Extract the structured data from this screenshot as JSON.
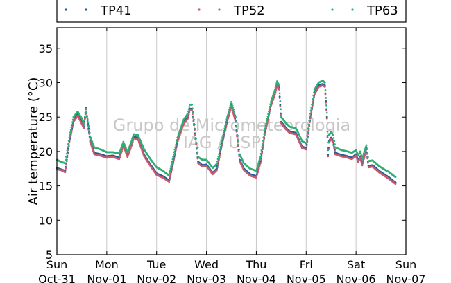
{
  "chart_data": {
    "type": "scatter",
    "ylabel": "Air temperature (°C)",
    "ylim": [
      5,
      38
    ],
    "yticks": [
      5,
      10,
      15,
      20,
      25,
      30,
      35
    ],
    "xlim_hours": [
      0,
      168
    ],
    "x_tick_labels": [
      {
        "day": "Sun",
        "date": "Oct-31"
      },
      {
        "day": "Mon",
        "date": "Nov-01"
      },
      {
        "day": "Tue",
        "date": "Nov-02"
      },
      {
        "day": "Wed",
        "date": "Nov-03"
      },
      {
        "day": "Thu",
        "date": "Nov-04"
      },
      {
        "day": "Fri",
        "date": "Nov-05"
      },
      {
        "day": "Sat",
        "date": "Nov-06"
      },
      {
        "day": "Sun",
        "date": "Nov-07"
      }
    ],
    "grid": "vertical",
    "legend_position": "top",
    "watermark": [
      "Grupo de Micrometeorologia",
      "IAG / USP"
    ],
    "series": [
      {
        "name": "TP41",
        "color": "#1f5fa0",
        "points": [
          [
            0,
            17.6
          ],
          [
            2,
            17.4
          ],
          [
            4,
            17.2
          ],
          [
            6,
            21.5
          ],
          [
            8,
            24.5
          ],
          [
            10,
            25.4
          ],
          [
            12,
            24.3
          ],
          [
            13,
            23.6
          ],
          [
            14,
            26.3
          ],
          [
            16,
            21.6
          ],
          [
            18,
            19.8
          ],
          [
            21,
            19.6
          ],
          [
            24,
            19.3
          ],
          [
            27,
            19.4
          ],
          [
            30,
            19.1
          ],
          [
            32,
            21.0
          ],
          [
            34,
            19.4
          ],
          [
            36,
            21.1
          ],
          [
            37,
            22.1
          ],
          [
            39,
            22.0
          ],
          [
            42,
            19.5
          ],
          [
            45,
            18.1
          ],
          [
            48,
            16.8
          ],
          [
            51,
            16.4
          ],
          [
            54,
            15.8
          ],
          [
            56,
            18.5
          ],
          [
            58,
            21.5
          ],
          [
            61,
            24.2
          ],
          [
            63,
            25.0
          ],
          [
            64,
            26.2
          ],
          [
            65,
            26.2
          ],
          [
            66,
            24.0
          ],
          [
            68,
            18.5
          ],
          [
            70,
            18.0
          ],
          [
            72,
            18.1
          ],
          [
            75,
            16.9
          ],
          [
            77,
            17.5
          ],
          [
            79,
            20.5
          ],
          [
            82,
            24.5
          ],
          [
            84,
            26.8
          ],
          [
            86,
            24.5
          ],
          [
            88,
            18.8
          ],
          [
            90,
            17.5
          ],
          [
            93,
            16.7
          ],
          [
            96,
            16.4
          ],
          [
            98,
            18.5
          ],
          [
            100,
            22.5
          ],
          [
            103,
            26.8
          ],
          [
            105,
            28.5
          ],
          [
            106,
            29.8
          ],
          [
            107,
            29.2
          ],
          [
            108,
            24.3
          ],
          [
            110,
            23.5
          ],
          [
            112,
            22.9
          ],
          [
            115,
            22.7
          ],
          [
            117,
            21.4
          ],
          [
            118,
            20.7
          ],
          [
            120,
            20.5
          ],
          [
            122,
            25.0
          ],
          [
            124,
            28.5
          ],
          [
            126,
            29.6
          ],
          [
            128,
            29.8
          ],
          [
            129,
            29.6
          ],
          [
            130,
            25.0
          ],
          [
            130.5,
            19.5
          ],
          [
            131,
            21.5
          ],
          [
            132,
            22.0
          ],
          [
            133,
            21.5
          ],
          [
            134,
            19.8
          ],
          [
            137,
            19.5
          ],
          [
            140,
            19.3
          ],
          [
            142,
            19.1
          ],
          [
            144,
            19.6
          ],
          [
            145,
            18.7
          ],
          [
            146,
            19.3
          ],
          [
            147,
            18.2
          ],
          [
            148,
            19.4
          ],
          [
            149,
            20.5
          ],
          [
            150,
            17.9
          ],
          [
            152,
            18.0
          ],
          [
            155,
            17.2
          ],
          [
            157,
            16.8
          ],
          [
            160,
            16.2
          ],
          [
            162,
            15.7
          ],
          [
            163,
            15.5
          ]
        ]
      },
      {
        "name": "TP52",
        "color": "#c85a6e",
        "points": [
          [
            0,
            17.4
          ],
          [
            2,
            17.3
          ],
          [
            4,
            17.0
          ],
          [
            6,
            21.3
          ],
          [
            8,
            24.3
          ],
          [
            10,
            25.2
          ],
          [
            12,
            24.0
          ],
          [
            13,
            23.4
          ],
          [
            14,
            26.1
          ],
          [
            16,
            21.4
          ],
          [
            18,
            19.6
          ],
          [
            21,
            19.4
          ],
          [
            24,
            19.1
          ],
          [
            27,
            19.2
          ],
          [
            30,
            18.9
          ],
          [
            32,
            20.8
          ],
          [
            34,
            19.2
          ],
          [
            36,
            20.9
          ],
          [
            37,
            21.9
          ],
          [
            39,
            21.8
          ],
          [
            42,
            19.3
          ],
          [
            45,
            17.9
          ],
          [
            48,
            16.6
          ],
          [
            51,
            16.2
          ],
          [
            54,
            15.6
          ],
          [
            56,
            18.3
          ],
          [
            58,
            21.3
          ],
          [
            61,
            24.0
          ],
          [
            63,
            24.8
          ],
          [
            64,
            26.0
          ],
          [
            65,
            26.0
          ],
          [
            66,
            23.8
          ],
          [
            68,
            18.3
          ],
          [
            70,
            17.8
          ],
          [
            72,
            17.9
          ],
          [
            75,
            16.7
          ],
          [
            77,
            17.3
          ],
          [
            79,
            20.3
          ],
          [
            82,
            24.3
          ],
          [
            84,
            26.6
          ],
          [
            86,
            24.3
          ],
          [
            88,
            18.6
          ],
          [
            90,
            17.3
          ],
          [
            93,
            16.5
          ],
          [
            96,
            16.2
          ],
          [
            98,
            18.3
          ],
          [
            100,
            22.3
          ],
          [
            103,
            26.6
          ],
          [
            105,
            28.3
          ],
          [
            106,
            29.6
          ],
          [
            107,
            29.0
          ],
          [
            108,
            24.1
          ],
          [
            110,
            23.3
          ],
          [
            112,
            22.7
          ],
          [
            115,
            22.5
          ],
          [
            117,
            21.2
          ],
          [
            118,
            20.5
          ],
          [
            120,
            20.3
          ],
          [
            122,
            24.8
          ],
          [
            124,
            28.3
          ],
          [
            126,
            29.4
          ],
          [
            128,
            29.6
          ],
          [
            129,
            29.4
          ],
          [
            130,
            24.8
          ],
          [
            130.5,
            19.3
          ],
          [
            131,
            21.3
          ],
          [
            132,
            21.8
          ],
          [
            133,
            21.3
          ],
          [
            134,
            19.6
          ],
          [
            137,
            19.3
          ],
          [
            140,
            19.1
          ],
          [
            142,
            18.9
          ],
          [
            144,
            19.4
          ],
          [
            145,
            18.5
          ],
          [
            146,
            19.1
          ],
          [
            147,
            18.0
          ],
          [
            148,
            19.2
          ],
          [
            149,
            20.3
          ],
          [
            150,
            17.7
          ],
          [
            152,
            17.8
          ],
          [
            155,
            17.0
          ],
          [
            157,
            16.6
          ],
          [
            160,
            16.0
          ],
          [
            162,
            15.5
          ],
          [
            163,
            15.3
          ]
        ]
      },
      {
        "name": "TP63",
        "color": "#2eaf73",
        "points": [
          [
            0,
            18.8
          ],
          [
            2,
            18.5
          ],
          [
            4,
            18.3
          ],
          [
            6,
            22.0
          ],
          [
            8,
            25.0
          ],
          [
            10,
            25.8
          ],
          [
            12,
            24.8
          ],
          [
            13,
            24.0
          ],
          [
            14,
            26.2
          ],
          [
            16,
            22.2
          ],
          [
            18,
            20.6
          ],
          [
            21,
            20.3
          ],
          [
            24,
            19.9
          ],
          [
            27,
            19.9
          ],
          [
            30,
            19.7
          ],
          [
            32,
            21.4
          ],
          [
            34,
            19.9
          ],
          [
            36,
            21.6
          ],
          [
            37,
            22.5
          ],
          [
            39,
            22.4
          ],
          [
            42,
            20.3
          ],
          [
            45,
            18.9
          ],
          [
            48,
            17.7
          ],
          [
            51,
            17.2
          ],
          [
            54,
            16.5
          ],
          [
            56,
            19.2
          ],
          [
            58,
            22.0
          ],
          [
            61,
            24.6
          ],
          [
            63,
            25.5
          ],
          [
            64,
            26.8
          ],
          [
            65,
            26.8
          ],
          [
            66,
            24.6
          ],
          [
            68,
            19.2
          ],
          [
            70,
            18.8
          ],
          [
            72,
            18.8
          ],
          [
            75,
            17.6
          ],
          [
            77,
            18.2
          ],
          [
            79,
            21.0
          ],
          [
            82,
            25.0
          ],
          [
            84,
            27.2
          ],
          [
            86,
            25.0
          ],
          [
            88,
            19.6
          ],
          [
            90,
            18.3
          ],
          [
            93,
            17.5
          ],
          [
            96,
            17.2
          ],
          [
            98,
            19.2
          ],
          [
            100,
            23.0
          ],
          [
            103,
            27.2
          ],
          [
            105,
            29.0
          ],
          [
            106,
            30.2
          ],
          [
            107,
            29.6
          ],
          [
            108,
            25.0
          ],
          [
            110,
            24.2
          ],
          [
            112,
            23.6
          ],
          [
            115,
            23.4
          ],
          [
            117,
            22.2
          ],
          [
            118,
            21.5
          ],
          [
            120,
            21.2
          ],
          [
            122,
            25.5
          ],
          [
            124,
            29.0
          ],
          [
            126,
            30.0
          ],
          [
            128,
            30.3
          ],
          [
            129,
            30.0
          ],
          [
            130,
            25.6
          ],
          [
            130.5,
            20.2
          ],
          [
            131,
            22.4
          ],
          [
            132,
            22.8
          ],
          [
            133,
            22.4
          ],
          [
            134,
            20.6
          ],
          [
            137,
            20.2
          ],
          [
            140,
            20.0
          ],
          [
            142,
            19.8
          ],
          [
            144,
            20.2
          ],
          [
            145,
            19.4
          ],
          [
            146,
            20.0
          ],
          [
            147,
            18.9
          ],
          [
            148,
            20.0
          ],
          [
            149,
            20.9
          ],
          [
            150,
            18.6
          ],
          [
            152,
            18.7
          ],
          [
            155,
            17.9
          ],
          [
            157,
            17.5
          ],
          [
            160,
            17.0
          ],
          [
            162,
            16.5
          ],
          [
            163,
            16.3
          ]
        ]
      }
    ]
  }
}
